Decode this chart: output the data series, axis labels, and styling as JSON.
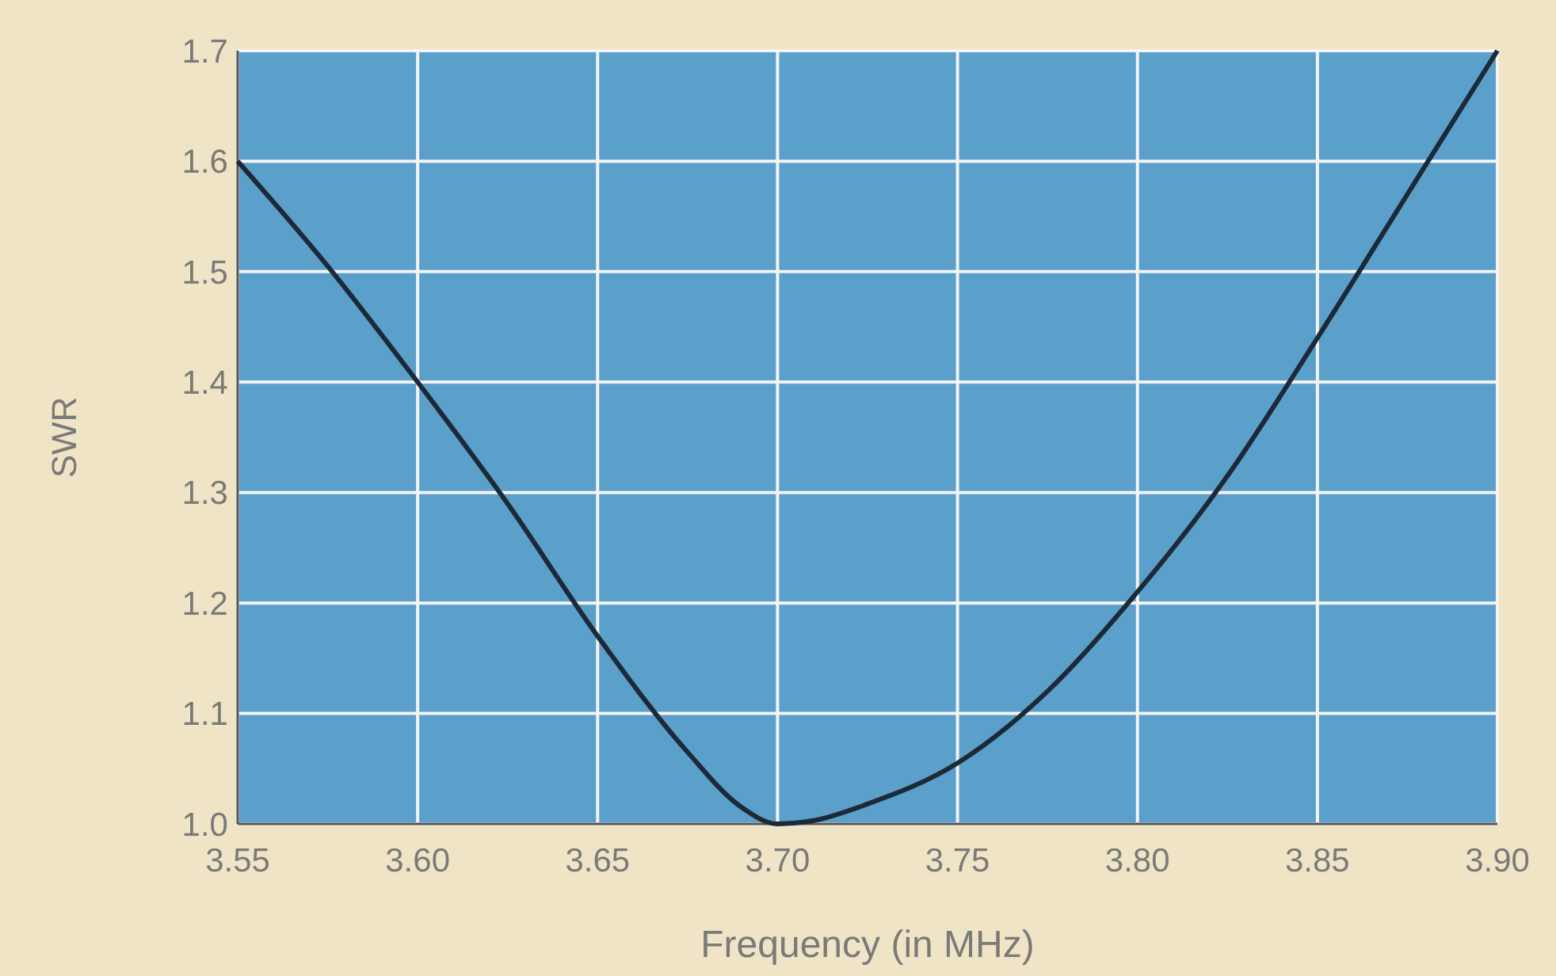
{
  "chart_data": {
    "type": "line",
    "xlabel": "Frequency (in MHz)",
    "ylabel": "SWR",
    "x": [
      3.55,
      3.575,
      3.6,
      3.625,
      3.65,
      3.675,
      3.69,
      3.7,
      3.71,
      3.725,
      3.75,
      3.775,
      3.8,
      3.825,
      3.85,
      3.875,
      3.9
    ],
    "series": [
      {
        "color": "#1c2a38",
        "values": [
          1.6,
          1.505,
          1.4,
          1.29,
          1.17,
          1.065,
          1.015,
          1.0,
          1.003,
          1.018,
          1.055,
          1.12,
          1.21,
          1.315,
          1.44,
          1.57,
          1.7
        ]
      }
    ],
    "xlim": [
      3.55,
      3.9
    ],
    "xticks": [
      {
        "value": 3.55,
        "label": "3.55"
      },
      {
        "value": 3.6,
        "label": "3.60"
      },
      {
        "value": 3.65,
        "label": "3.65"
      },
      {
        "value": 3.7,
        "label": "3.70"
      },
      {
        "value": 3.75,
        "label": "3.75"
      },
      {
        "value": 3.8,
        "label": "3.80"
      },
      {
        "value": 3.85,
        "label": "3.85"
      },
      {
        "value": 3.9,
        "label": "3.90"
      }
    ],
    "ylim": [
      1.0,
      1.7
    ],
    "yticks": [
      {
        "value": 1.0,
        "label": "1.0"
      },
      1.1,
      1.2,
      1.3,
      1.4,
      1.5,
      1.6,
      1.7
    ],
    "grid": true,
    "marker": "none",
    "line_style": "solid"
  }
}
